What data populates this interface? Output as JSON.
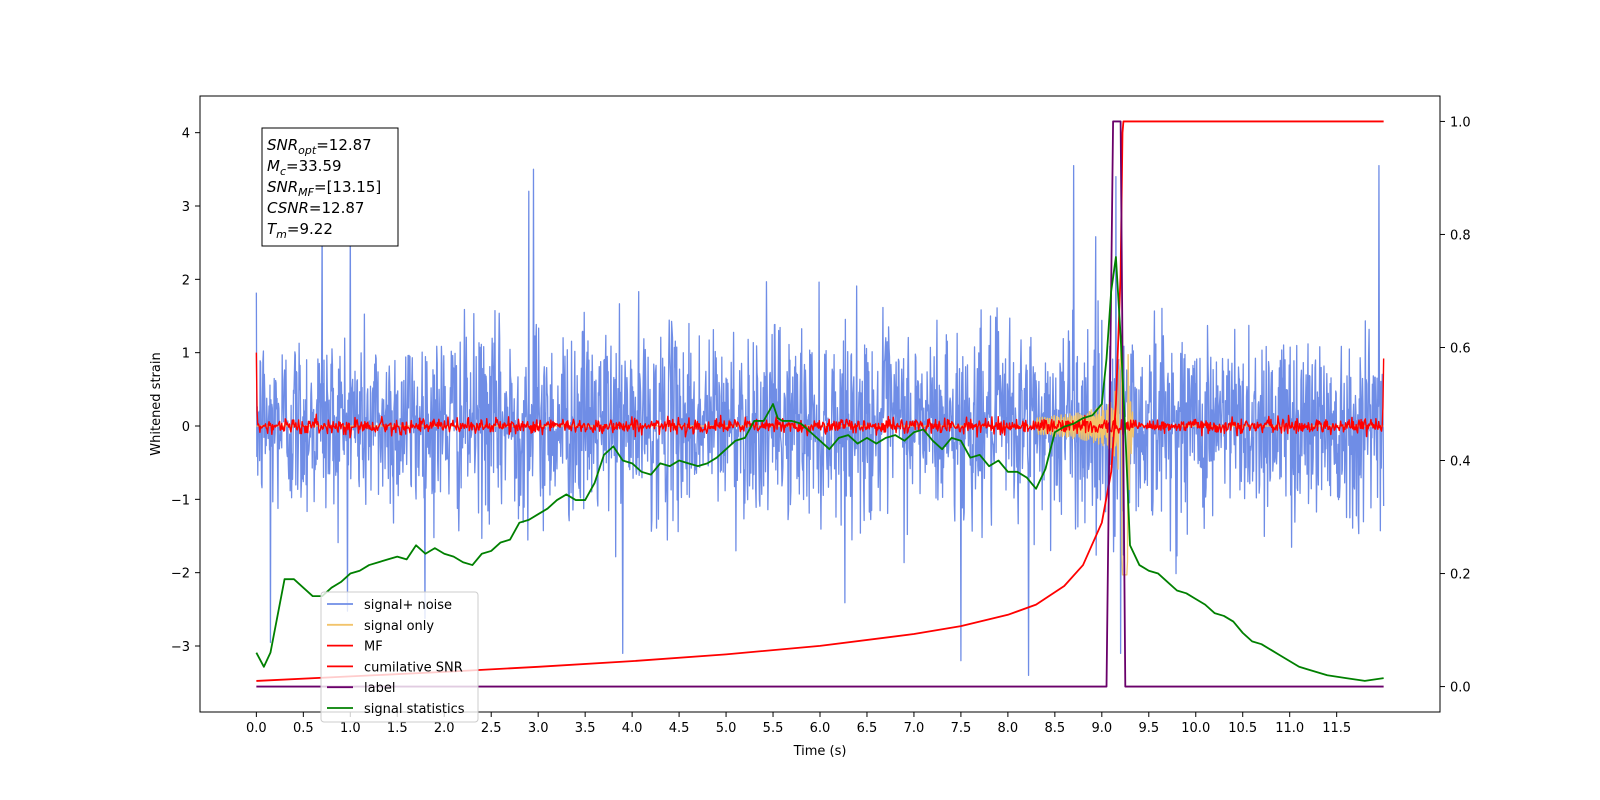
{
  "chart_data": {
    "type": "line",
    "title": "",
    "xlabel": "Time (s)",
    "ylabel": "Whitened strain",
    "xlim": [
      -0.6,
      12.6
    ],
    "ylim": [
      -3.9,
      4.5
    ],
    "y2lim": [
      -0.045,
      1.045
    ],
    "x_ticks": [
      0.0,
      0.5,
      1.0,
      1.5,
      2.0,
      2.5,
      3.0,
      3.5,
      4.0,
      4.5,
      5.0,
      5.5,
      6.0,
      6.5,
      7.0,
      7.5,
      8.0,
      8.5,
      9.0,
      9.5,
      10.0,
      10.5,
      11.0,
      11.5
    ],
    "x_tick_labels": [
      "0.0",
      "0.5",
      "1.0",
      "1.5",
      "2.0",
      "2.5",
      "3.0",
      "3.5",
      "4.0",
      "4.5",
      "5.0",
      "5.5",
      "6.0",
      "6.5",
      "7.0",
      "7.5",
      "8.0",
      "8.5",
      "9.0",
      "9.5",
      "10.0",
      "10.5",
      "11.0",
      "11.5"
    ],
    "y_ticks": [
      -3,
      -2,
      -1,
      0,
      1,
      2,
      3,
      4
    ],
    "y_tick_labels": [
      "−3",
      "−2",
      "−1",
      "0",
      "1",
      "2",
      "3",
      "4"
    ],
    "y2_ticks": [
      0.0,
      0.2,
      0.4,
      0.6,
      0.8,
      1.0
    ],
    "y2_tick_labels": [
      "0.0",
      "0.2",
      "0.4",
      "0.6",
      "0.8",
      "1.0"
    ],
    "grid": false,
    "legend_position": "lower-left",
    "annotation": {
      "lines": [
        {
          "sym": "SNR",
          "sub": "opt",
          "rest": "=12.87"
        },
        {
          "sym": "M",
          "sub": "c",
          "rest": "=33.59"
        },
        {
          "sym": "SNR",
          "sub": "MF",
          "rest": "=[13.15]"
        },
        {
          "sym": "CSNR",
          "sub": "",
          "rest": "=12.87"
        },
        {
          "sym": "T",
          "sub": "m",
          "rest": "=9.22"
        }
      ]
    },
    "series": [
      {
        "name": "signal+ noise",
        "axis": "left",
        "color": "#6f8de6",
        "kind": "noise",
        "envelope": {
          "x": [
            0,
            1,
            2,
            3,
            4,
            5,
            6,
            7,
            8,
            8.6,
            9.0,
            9.2,
            9.3,
            10,
            11,
            12
          ],
          "std": [
            0.85,
            0.85,
            0.85,
            0.85,
            0.85,
            0.85,
            0.85,
            0.85,
            0.85,
            0.9,
            1.0,
            1.1,
            0.95,
            0.85,
            0.85,
            0.85
          ]
        },
        "peaks": [
          [
            0.7,
            2.9
          ],
          [
            1.0,
            2.9
          ],
          [
            2.9,
            3.2
          ],
          [
            2.95,
            3.5
          ],
          [
            8.7,
            3.55
          ],
          [
            9.15,
            3.4
          ],
          [
            11.95,
            3.55
          ],
          [
            0.15,
            -2.95
          ],
          [
            3.9,
            -3.1
          ],
          [
            8.22,
            -3.4
          ],
          [
            7.5,
            -3.2
          ],
          [
            9.2,
            -3.1
          ]
        ]
      },
      {
        "name": "signal only",
        "axis": "left",
        "color": "#f2c46b",
        "kind": "chirp",
        "chirp": {
          "t_merge": 9.22,
          "amp_max": 2.2,
          "t_start": 8.3
        }
      },
      {
        "name": "MF",
        "axis": "left",
        "color": "#ff0000",
        "kind": "mf",
        "mf": {
          "noise_std": 0.05,
          "start_value": 1.0,
          "end_value": 0.92
        }
      },
      {
        "name": "cumilative SNR",
        "axis": "right",
        "color": "#ff0000",
        "x": [
          0.0,
          1.0,
          2.0,
          3.0,
          4.0,
          5.0,
          6.0,
          7.0,
          7.5,
          8.0,
          8.3,
          8.6,
          8.8,
          9.0,
          9.1,
          9.15,
          9.2,
          9.22,
          9.23,
          12.0
        ],
        "y": [
          0.01,
          0.018,
          0.026,
          0.035,
          0.045,
          0.057,
          0.072,
          0.093,
          0.107,
          0.127,
          0.145,
          0.178,
          0.215,
          0.29,
          0.38,
          0.5,
          0.73,
          0.98,
          1.0,
          1.0
        ]
      },
      {
        "name": "label",
        "axis": "right",
        "color": "#6a006a",
        "x": [
          0.0,
          9.05,
          9.12,
          9.2,
          9.25,
          12.0
        ],
        "y": [
          0.0,
          0.0,
          1.0,
          1.0,
          0.0,
          0.0
        ]
      },
      {
        "name": "signal statistics",
        "axis": "right",
        "color": "#008000",
        "x": [
          0.0,
          0.08,
          0.15,
          0.3,
          0.4,
          0.5,
          0.6,
          0.7,
          0.8,
          0.9,
          1.0,
          1.1,
          1.2,
          1.3,
          1.4,
          1.5,
          1.6,
          1.7,
          1.8,
          1.9,
          2.0,
          2.1,
          2.2,
          2.3,
          2.4,
          2.5,
          2.6,
          2.7,
          2.8,
          2.9,
          3.0,
          3.1,
          3.2,
          3.3,
          3.4,
          3.5,
          3.6,
          3.7,
          3.8,
          3.9,
          4.0,
          4.1,
          4.2,
          4.3,
          4.4,
          4.5,
          4.6,
          4.7,
          4.8,
          4.9,
          5.0,
          5.1,
          5.2,
          5.3,
          5.4,
          5.5,
          5.55,
          5.6,
          5.7,
          5.8,
          5.9,
          6.0,
          6.1,
          6.2,
          6.3,
          6.4,
          6.5,
          6.6,
          6.7,
          6.8,
          6.9,
          7.0,
          7.1,
          7.2,
          7.3,
          7.4,
          7.5,
          7.6,
          7.7,
          7.8,
          7.9,
          8.0,
          8.1,
          8.2,
          8.3,
          8.4,
          8.5,
          8.6,
          8.7,
          8.8,
          8.9,
          9.0,
          9.05,
          9.1,
          9.15,
          9.2,
          9.25,
          9.3,
          9.4,
          9.5,
          9.6,
          9.7,
          9.8,
          9.9,
          10.0,
          10.1,
          10.2,
          10.3,
          10.4,
          10.5,
          10.6,
          10.7,
          10.8,
          10.9,
          11.0,
          11.1,
          11.2,
          11.4,
          11.6,
          11.8,
          12.0
        ],
        "y": [
          0.06,
          0.035,
          0.06,
          0.19,
          0.19,
          0.175,
          0.16,
          0.16,
          0.175,
          0.185,
          0.2,
          0.205,
          0.215,
          0.22,
          0.225,
          0.23,
          0.225,
          0.25,
          0.235,
          0.245,
          0.235,
          0.23,
          0.22,
          0.215,
          0.235,
          0.24,
          0.255,
          0.26,
          0.29,
          0.295,
          0.305,
          0.315,
          0.33,
          0.34,
          0.33,
          0.33,
          0.36,
          0.41,
          0.425,
          0.4,
          0.395,
          0.38,
          0.375,
          0.395,
          0.39,
          0.4,
          0.395,
          0.39,
          0.395,
          0.405,
          0.42,
          0.435,
          0.44,
          0.47,
          0.47,
          0.5,
          0.475,
          0.47,
          0.47,
          0.465,
          0.45,
          0.435,
          0.42,
          0.44,
          0.445,
          0.43,
          0.44,
          0.43,
          0.44,
          0.445,
          0.435,
          0.45,
          0.455,
          0.435,
          0.42,
          0.44,
          0.435,
          0.405,
          0.41,
          0.39,
          0.4,
          0.38,
          0.38,
          0.37,
          0.35,
          0.385,
          0.45,
          0.46,
          0.465,
          0.475,
          0.48,
          0.5,
          0.58,
          0.7,
          0.76,
          0.62,
          0.45,
          0.25,
          0.215,
          0.205,
          0.2,
          0.185,
          0.17,
          0.165,
          0.155,
          0.145,
          0.13,
          0.125,
          0.115,
          0.095,
          0.08,
          0.075,
          0.065,
          0.055,
          0.045,
          0.035,
          0.03,
          0.02,
          0.015,
          0.01,
          0.015
        ]
      }
    ]
  }
}
